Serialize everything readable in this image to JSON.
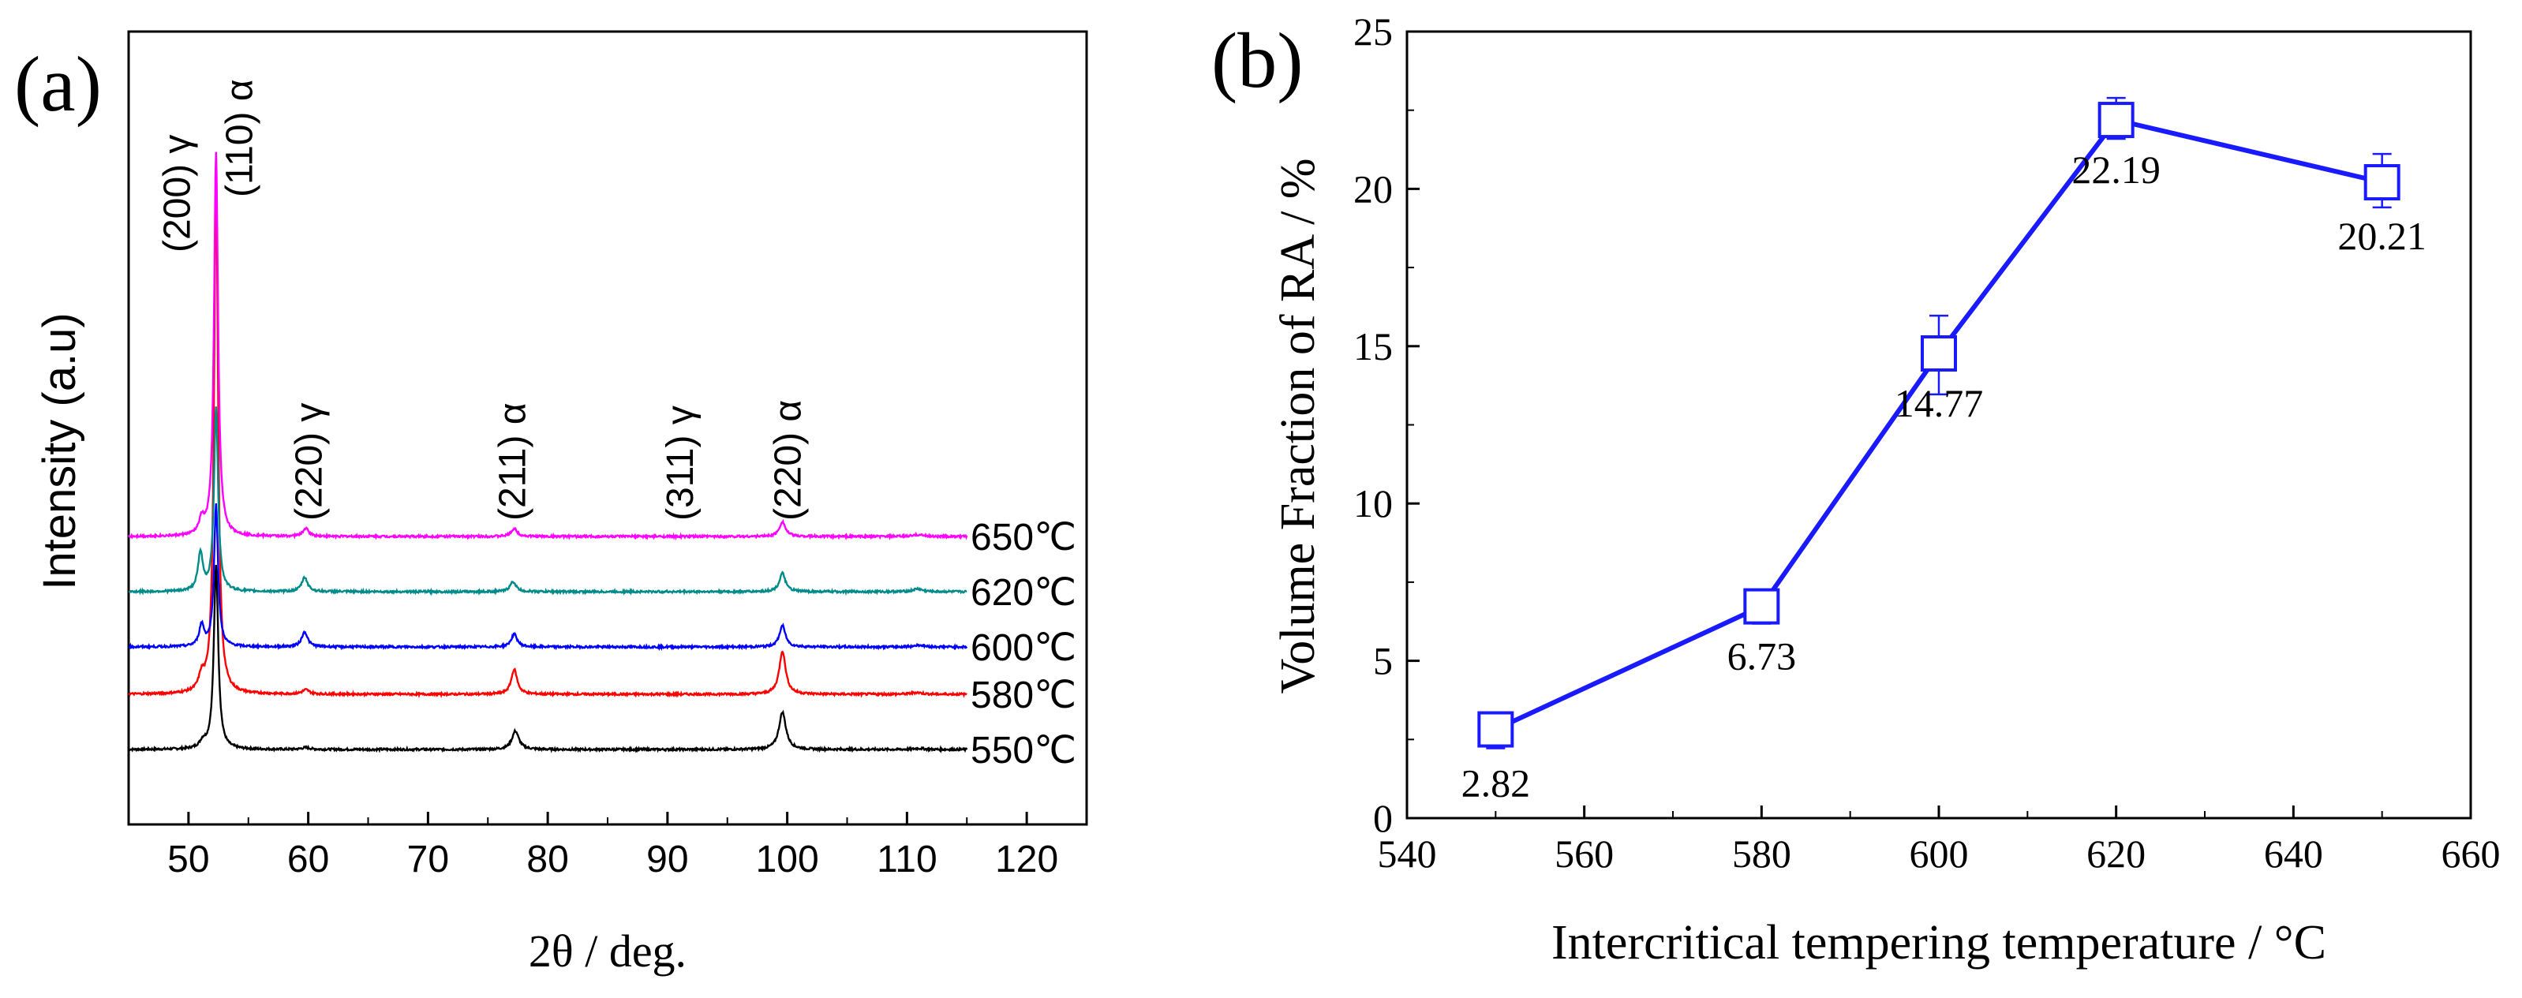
{
  "chart_data": [
    {
      "panel_label": "(a)",
      "type": "line",
      "title": "",
      "xlabel": "2θ / deg.",
      "ylabel": "Intensity (a.u)",
      "xlim": [
        45,
        125
      ],
      "xticks": [
        50,
        60,
        70,
        80,
        90,
        100,
        110,
        120
      ],
      "grid": false,
      "series": [
        {
          "name": "550℃",
          "color": "#000000",
          "peaks": [
            {
              "x": 51.2,
              "h": 0.18,
              "w": 0.3
            },
            {
              "x": 52.3,
              "h": 5.2,
              "w": 0.22
            },
            {
              "x": 59.8,
              "h": 0.05,
              "w": 0.4
            },
            {
              "x": 77.3,
              "h": 0.52,
              "w": 0.35
            },
            {
              "x": 99.6,
              "h": 1.05,
              "w": 0.35
            },
            {
              "x": 111.0,
              "h": 0.03,
              "w": 0.5
            }
          ]
        },
        {
          "name": "580℃",
          "color": "#ff0000",
          "peaks": [
            {
              "x": 51.1,
              "h": 0.4,
              "w": 0.28
            },
            {
              "x": 52.3,
              "h": 14.6,
              "w": 0.2
            },
            {
              "x": 59.8,
              "h": 0.12,
              "w": 0.35
            },
            {
              "x": 77.2,
              "h": 0.7,
              "w": 0.3
            },
            {
              "x": 99.6,
              "h": 1.22,
              "w": 0.32
            },
            {
              "x": 110.8,
              "h": 0.05,
              "w": 0.5
            }
          ]
        },
        {
          "name": "600℃",
          "color": "#0000ff",
          "peaks": [
            {
              "x": 51.1,
              "h": 0.6,
              "w": 0.25
            },
            {
              "x": 52.3,
              "h": 4.0,
              "w": 0.2
            },
            {
              "x": 59.7,
              "h": 0.42,
              "w": 0.3
            },
            {
              "x": 77.2,
              "h": 0.36,
              "w": 0.3
            },
            {
              "x": 99.6,
              "h": 0.6,
              "w": 0.3
            },
            {
              "x": 111.0,
              "h": 0.05,
              "w": 0.5
            }
          ]
        },
        {
          "name": "620℃",
          "color": "#008b8b",
          "peaks": [
            {
              "x": 51.0,
              "h": 1.05,
              "w": 0.25
            },
            {
              "x": 52.3,
              "h": 5.2,
              "w": 0.2
            },
            {
              "x": 59.7,
              "h": 0.4,
              "w": 0.3
            },
            {
              "x": 77.1,
              "h": 0.28,
              "w": 0.3
            },
            {
              "x": 99.6,
              "h": 0.52,
              "w": 0.3
            },
            {
              "x": 110.9,
              "h": 0.08,
              "w": 0.45
            }
          ]
        },
        {
          "name": "650℃",
          "color": "#ff00ff",
          "peaks": [
            {
              "x": 51.1,
              "h": 0.4,
              "w": 0.25
            },
            {
              "x": 52.3,
              "h": 10.8,
              "w": 0.2
            },
            {
              "x": 59.8,
              "h": 0.22,
              "w": 0.3
            },
            {
              "x": 77.2,
              "h": 0.22,
              "w": 0.3
            },
            {
              "x": 99.6,
              "h": 0.42,
              "w": 0.3
            },
            {
              "x": 111.0,
              "h": 0.05,
              "w": 0.5
            }
          ]
        }
      ],
      "peak_labels": [
        {
          "x": 49.0,
          "text": "(200) γ"
        },
        {
          "x": 54.0,
          "text": "(110) α"
        },
        {
          "x": 60.0,
          "text": "(220) γ"
        },
        {
          "x": 77.0,
          "text": "(211) α"
        },
        {
          "x": 91.0,
          "text": "(311) γ"
        },
        {
          "x": 100.0,
          "text": "(220) α"
        }
      ]
    },
    {
      "panel_label": "(b)",
      "type": "line",
      "title": "",
      "xlabel": "Intercritical tempering temperature / °C",
      "ylabel": "Volume Fraction of RA / %",
      "xlim": [
        540,
        660
      ],
      "ylim": [
        0,
        25
      ],
      "xticks": [
        540,
        560,
        580,
        600,
        620,
        640,
        660
      ],
      "yticks": [
        0,
        5,
        10,
        15,
        20,
        25
      ],
      "grid": false,
      "color": "#1a1aff",
      "series": [
        {
          "name": "Volume Fraction of RA",
          "x": [
            550,
            580,
            600,
            620,
            650
          ],
          "y": [
            2.82,
            6.73,
            14.77,
            22.19,
            20.21
          ],
          "err_low": [
            0.6,
            0.55,
            1.3,
            0.6,
            0.8
          ],
          "err_high": [
            0.3,
            0.35,
            1.2,
            0.7,
            0.9
          ]
        }
      ],
      "data_labels": [
        "2.82",
        "6.73",
        "14.77",
        "22.19",
        "20.21"
      ]
    }
  ]
}
